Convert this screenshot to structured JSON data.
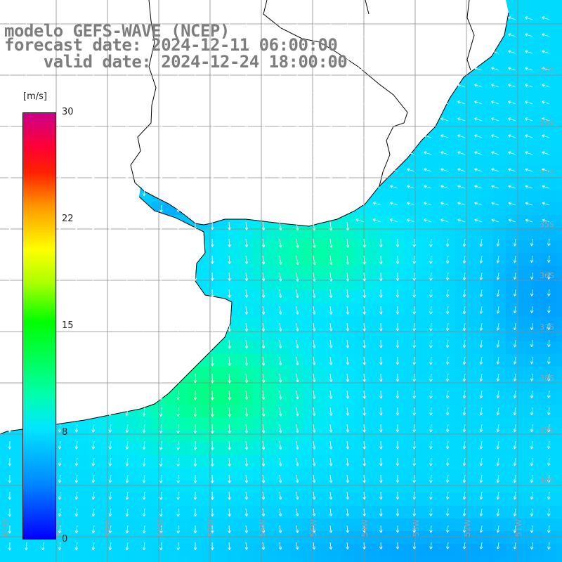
{
  "title": {
    "line1": "modelo GEFS-WAVE (NCEP)",
    "line2": "forecast date: 2024-12-11 06:00:00",
    "line3": "    valid date: 2024-12-24 18:00:00"
  },
  "colorbar": {
    "unit": "[m/s]",
    "ticks": [
      "30",
      "22",
      "15",
      "8",
      "0"
    ],
    "tick_values": [
      30,
      22,
      15,
      8,
      0
    ],
    "max": 30,
    "colors": [
      "#0000ff",
      "#0088ff",
      "#00e6ff",
      "#00ffaa",
      "#00ff00",
      "#aaff00",
      "#ffff00",
      "#ff9900",
      "#ff2200",
      "#cc0088"
    ]
  },
  "map": {
    "lat_labels": [
      "32S",
      "33S",
      "34S",
      "35S",
      "36S",
      "37S",
      "38S",
      "39S",
      "40S"
    ],
    "lon_labels": [
      "61W",
      "60W",
      "59W",
      "58W",
      "57W",
      "56W",
      "55W",
      "54W",
      "53W",
      "52W",
      "51W"
    ],
    "land_color": "#ffffff",
    "grid_color": "#888888"
  }
}
